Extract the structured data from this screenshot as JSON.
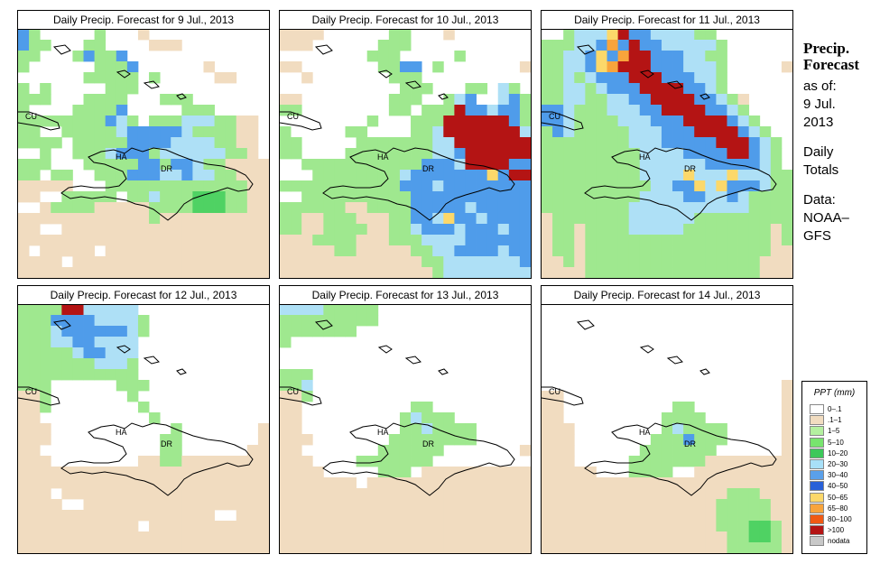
{
  "panels": [
    {
      "title": "Daily Precip. Forecast for  9 Jul., 2013",
      "labels": [
        "CU",
        "HA",
        "DR"
      ],
      "grid": [
        "BG.....G...T...........",
        "BGG...GG....TTT........",
        "GG...GBGGB.............",
        "G......GGGB......T.....",
        "......GGGGG.G.....TT...",
        "G.G.....GGG............",
        "GGG...GGGG...GGG.......",
        "G....GGGGB.....GGG.....",
        "GGGGGGGGBLG.GGGLLLGGTT.",
        "GG..GGGGGLBBBBBLGGGGTT.",
        "GGGG.GGGGGBBBBLLLLGGTT.",
        "..G..GGGLBBBGLLLLLLGGT.",
        "GGG...GGGGGBBGBBLGGTTTT",
        "GG.GG..GGGBBBLLBLLGGTTT",
        "TTTTT...GGGGGGGGGGGGGTT",
        "TT..GGGGG.GGLGGGDDDGGTT",
        "..TGGGGTTTTTGGGGDDDGGTT",
        "TTTTTTTTTTTTGTTTTTTTTTT",
        "TT..TTTTTTTTTTTTTTTTTTT",
        "TTTTTTTTTTTTTTTTTTTTTTT",
        "T.TTTTT.TTTTTTTTTTTTTTT",
        "TTTT.TTTTTTTTTTTTTTTTTT",
        "TTTTTTTTTTTTTTTTTTTTTTT"
      ]
    },
    {
      "title": "Daily Precip. Forecast for  10 Jul., 2013",
      "labels": [
        "CU",
        "HA",
        "DR"
      ],
      "grid": [
        "TTTT......GG...T.......",
        "TTT......GGG...........",
        "........GGG.....G......",
        "TT.......GGBB.G.......T",
        "..T.......GGG..........",
        "...........GGG...GG.LG.",
        "TT........GGG..GLB..LBG",
        "GG........GG.GGGRBBLBBG",
        "........G...GGGRRRRRRBG",
        "G.....GG....GGLRRRRRRRL",
        "GG.....GGGGGGGLLRRRRRRR",
        "GG....GGGGGGGGLLBRRRRRR",
        "..GGGGGGGGGGGBBBLRRRRBB",
        "...GGGGGGGGLBBBBBBBYBRR",
        "GGGGGGGGGGGBBBLBBBBBBBB",
        "..GGGGGGGGGGBBBBBBBBBBB",
        "GGGGGGTTGGGGBBBBBLBBBBB",
        "GGTTGGGTTTGGBBLYBBLBBBB",
        "GGTTGGGGTTGGLBBBLBBBLBB",
        "TTTGGGGTTTGGGLLLLBBBBBB",
        "TTTTTGGTTTTTGGLLBBBBLBB",
        "TTTTTTTTTTTTTGGLLLLLLLB",
        "TTTTTTTTTTTTTTGLLLLLLLL"
      ]
    },
    {
      "title": "Daily Precip. Forecast for  11 Jul., 2013",
      "labels": [
        "CU",
        "HA",
        "DR"
      ],
      "grid": [
        "..GLLLYRBBLLLLGG.......",
        "GGGLLBOBRBBLLLLLG......",
        "GGLLBYBORRBBBLLGG......",
        "GGLLBYORRRBBBLLLG.....T",
        "GGLGLBBBRRRBBBLLG......",
        "GGLLGLBBBRRRRBBLG......",
        "GGLLGGLLBBRRRRBBLGT....",
        "BBLGGGLLLBBRRRRBBLG....",
        "BBLGGGGLLLBBBRRRRBLG...",
        "GBLGGGGGLLLBBBRRRRBLG..",
        "GGGGGGGGLLLBBBBBRRRBLG.",
        "GGGGGGGGGLLLLBBBBRRBLG.",
        "GGGGGGGGGLLLLLLBBBBBLG.",
        "GGGGGGGGGLLLLYLLLYLLLGG",
        "GGGGGGGGGGLLBBYLYBBBLGG",
        "GGGGGGGGGLLLLBBLLBLGGGG",
        "GGGGGGGGLLLLLLLLLLLGGGG",
        "TGGGGGGGLLLLLLGGGGGGGGG",
        "TGGTGGGGLLLLLGGGGGGGGTG",
        "TGGTGGGGGGGGGGGGGGGGGTG",
        "TGGTGGGGGGGGGGGGGGGGGTT",
        "TTGTGGGGGGGGGGGGGGGGTTT",
        "TTTTGGGGGGGGGGGGGGGGTTT"
      ]
    },
    {
      "title": "Daily Precip. Forecast for  12 Jul., 2013",
      "labels": [
        "CU",
        "HA",
        "DR"
      ],
      "grid": [
        "GGGGRRLLLLL............",
        "GGGBBBBLLLLG...........",
        "GGGLBBBBBBLG...........",
        "GGGLLBBLLLL............",
        "GGGGGLBBLLL............",
        "GGGGGGGLLLG............",
        "GGGGGGGGGGG............",
        "GGG......GGG...........",
        "TTG.......G............",
        "TTG........G...........",
        "TT..........G..........",
        "TTT...........G.......T",
        "TTT..........GG.......T",
        "TT...........GG......TT",
        "TTT........TTGGTTTTTTTT",
        "TTTTTTTTTTTTTTTTTTTTTTT",
        "TTTTTTTTTTTTTTTTTTTTTTT",
        "TTT.TTTTTTTTTTTTTTTTTTT",
        "TTTT..TTTTTTTTTTTTTTTTT",
        "TTTTTTTTTTTTTTTTTT..TTT",
        "TTTTTTTTTTT.TTTTTTTTTTT",
        "TTTTTTTTTTTTTTTTTTTTTTT",
        "TTTTTTTTTTTTTTTTTTTTTTT"
      ]
    },
    {
      "title": "Daily Precip. Forecast for  13 Jul., 2013",
      "labels": [
        "CU",
        "HA",
        "DR"
      ],
      "grid": [
        "LLLLGGGGG..............",
        "GGGGGGGGG..............",
        "GGGGGGG................",
        "G......................",
        ".......................",
        ".......................",
        "GGG....................",
        "GGL....................",
        "TTG....................",
        "TT..........GG.........",
        "TT.........GLGGG.......",
        "TT.........GGLGGGG.....",
        "TTT.......GGGGGGGG.....",
        "TT.......GGGGGG.......T",
        "TTT....GGGGGGG.........",
        "TTTT.....GGG.TTTTTTTTTT",
        "TTTTTTT.TTTTTTTTTTTTTTT",
        "TTTTTTTTTTTTTTTTTTTTTTT",
        "TTTTTTTTTTTTTTTTTTTTTTT",
        "TTTTTTTTTTTTTTTTTTTTTTT",
        "TTTTTTTTTTTTTTTTTTTTTTT",
        "TTTTTTTTTTTTTTTTTTTTTTT",
        "TTTTTTTTTTTTTTTTTTTTTTT"
      ]
    },
    {
      "title": "Daily Precip. Forecast for  14 Jul., 2013",
      "labels": [
        "CU",
        "HA",
        "DR"
      ],
      "grid": [
        ".......................",
        ".......................",
        ".......................",
        ".......................",
        ".......................",
        ".......................",
        ".......................",
        "......................T",
        "TT....................T",
        "TT..........GG........T",
        "TT.........GGGG.......T",
        "TTT........GLGGGG.....T",
        "TTT.......GGGBGGG.....T",
        "TTT......GGGGGGG......T",
        "TTT.....GGGGGGGTTTTTTTT",
        "TTTTT...GGGG..TTTTTTTTT",
        "TTTTTTTTTTTTTTTTTTTTTTT",
        "TTTTTTTTTTTTTTTTTGGGTTT",
        "TTTTTTTTTTTTTTTTGGGGGTT",
        "TTTTTTTTTTTTTTTTGGGGGTT",
        "TTTTTTTTTTTTTTTTGGGDDGT",
        "TTTTTTTTTTTTTTTTTGGDDGT",
        "TTTTTTTTTTTTTTTTTGGGGGT"
      ]
    }
  ],
  "side": {
    "heading1": "Precip.",
    "heading2": "Forecast",
    "asof": "as of:",
    "date1": "9 Jul.",
    "date2": "2013",
    "totals1": "Daily",
    "totals2": "Totals",
    "data1": "Data:",
    "data2": "NOAA–",
    "data3": "GFS"
  },
  "legend": {
    "title": "PPT (mm)",
    "items": [
      {
        "label": "0–.1",
        "color": "#ffffff"
      },
      {
        "label": ".1–1",
        "color": "#f1dcc0"
      },
      {
        "label": "1–5",
        "color": "#b4f0a0"
      },
      {
        "label": "5–10",
        "color": "#78e46e"
      },
      {
        "label": "10–20",
        "color": "#3cc85a"
      },
      {
        "label": "20–30",
        "color": "#a8e0f8"
      },
      {
        "label": "30–40",
        "color": "#5aa0ea"
      },
      {
        "label": "40–50",
        "color": "#2860d8"
      },
      {
        "label": "50–65",
        "color": "#fcd86a"
      },
      {
        "label": "65–80",
        "color": "#f8a43c"
      },
      {
        "label": "80–100",
        "color": "#f05a14"
      },
      {
        "label": ">100",
        "color": "#b41414"
      },
      {
        "label": "nodata",
        "color": "#c8c8c8"
      }
    ]
  },
  "cell_colors": {
    ".": "#ffffff",
    "T": "#f1dcc0",
    "G": "#9fe88f",
    "D": "#4fd263",
    "L": "#aee0f6",
    "B": "#4f9cea",
    "Y": "#fcd86a",
    "O": "#f8a43c",
    "R": "#b41414"
  }
}
